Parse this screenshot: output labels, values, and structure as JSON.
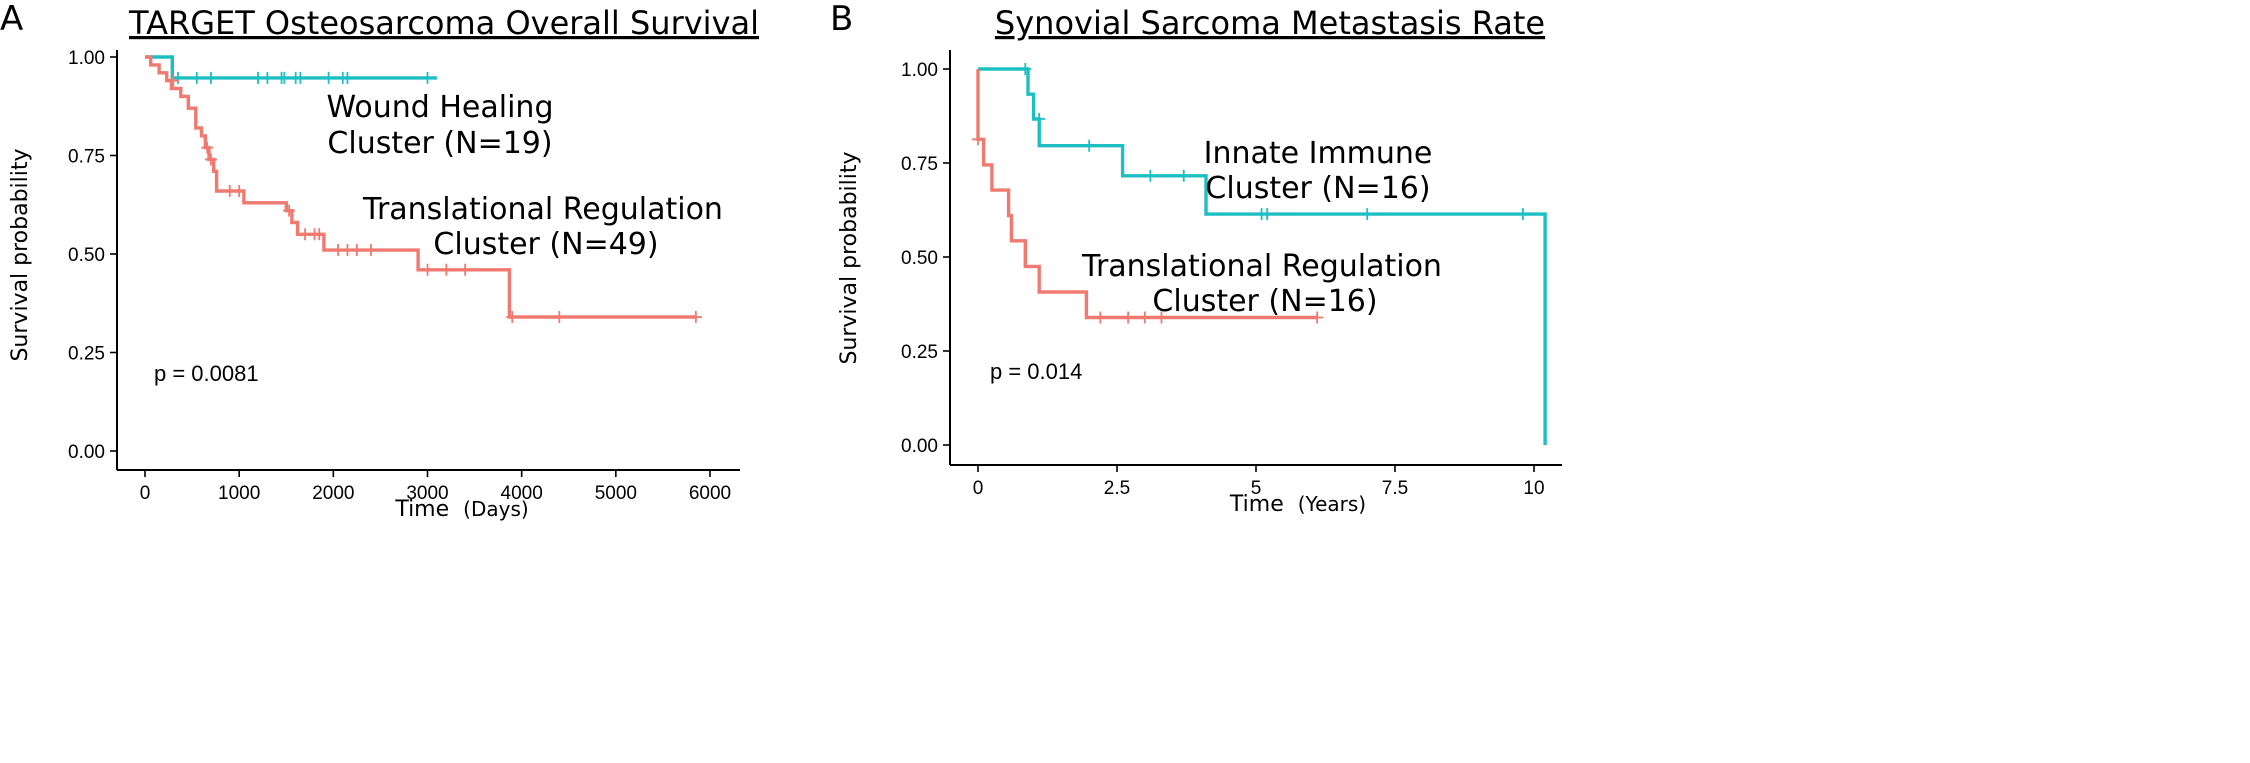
{
  "colors": {
    "series_a": "#f07a70",
    "series_b": "#1ebfc2"
  },
  "chart_data": [
    {
      "type": "line",
      "panel_label": "A",
      "title": "TARGET Osteosarcoma Overall Survival",
      "xlabel": "Time",
      "xunit": "(Days)",
      "ylabel": "Survival probability",
      "xlim": [
        0,
        6100
      ],
      "ylim": [
        0,
        1.02
      ],
      "xticks": [
        0,
        1000,
        2000,
        3000,
        4000,
        5000,
        6000
      ],
      "xtick_labels": [
        "0",
        "1000",
        "2000",
        "3000",
        "4000",
        "5000",
        "6000"
      ],
      "yticks": [
        0,
        0.25,
        0.5,
        0.75,
        1.0
      ],
      "ytick_labels": [
        "0.00",
        "0.25",
        "0.50",
        "0.75",
        "1.00"
      ],
      "pvalue": "p = 0.0081",
      "series": [
        {
          "name_lines": [
            "Wound Healing",
            "Cluster (N=19)"
          ],
          "color_key": "series_b",
          "step_x": [
            0,
            290,
            290,
            3100
          ],
          "step_y": [
            1.0,
            1.0,
            0.947,
            0.947
          ],
          "censors_x": [
            350,
            550,
            700,
            1200,
            1300,
            1450,
            1480,
            1600,
            1650,
            1950,
            2100,
            2150,
            3000
          ],
          "censors_y": [
            0.947,
            0.947,
            0.947,
            0.947,
            0.947,
            0.947,
            0.947,
            0.947,
            0.947,
            0.947,
            0.947,
            0.947,
            0.947
          ]
        },
        {
          "name_lines": [
            "Translational Regulation",
            "Cluster (N=49)"
          ],
          "color_key": "series_a",
          "step_x": [
            0,
            60,
            60,
            150,
            150,
            230,
            230,
            280,
            280,
            380,
            380,
            460,
            460,
            540,
            540,
            600,
            600,
            640,
            640,
            680,
            680,
            730,
            730,
            760,
            760,
            1050,
            1050,
            1500,
            1500,
            1560,
            1560,
            1620,
            1620,
            1900,
            1900,
            2900,
            2900,
            3870,
            3870,
            5850
          ],
          "step_y": [
            1.0,
            1.0,
            0.98,
            0.98,
            0.96,
            0.96,
            0.94,
            0.94,
            0.92,
            0.92,
            0.9,
            0.9,
            0.87,
            0.87,
            0.82,
            0.82,
            0.8,
            0.8,
            0.77,
            0.77,
            0.74,
            0.74,
            0.71,
            0.71,
            0.66,
            0.66,
            0.63,
            0.63,
            0.61,
            0.61,
            0.58,
            0.58,
            0.55,
            0.55,
            0.51,
            0.51,
            0.46,
            0.46,
            0.34,
            0.34
          ],
          "censors_x": [
            300,
            660,
            700,
            900,
            1000,
            1530,
            1700,
            1800,
            1850,
            2050,
            2150,
            2250,
            2400,
            3000,
            3200,
            3400,
            3900,
            4400,
            5850
          ],
          "censors_y": [
            0.94,
            0.77,
            0.74,
            0.66,
            0.66,
            0.61,
            0.55,
            0.55,
            0.55,
            0.51,
            0.51,
            0.51,
            0.51,
            0.46,
            0.46,
            0.46,
            0.34,
            0.34,
            0.34
          ]
        }
      ]
    },
    {
      "type": "line",
      "panel_label": "B",
      "title": "Synovial Sarcoma Metastasis Rate",
      "xlabel": "Time",
      "xunit": "(Years)",
      "ylabel": "Survival probability",
      "xlim": [
        0,
        10.5
      ],
      "ylim": [
        0,
        1.02
      ],
      "xticks": [
        0,
        2.5,
        5,
        7.5,
        10
      ],
      "xtick_labels": [
        "0",
        "2.5",
        "5",
        "7.5",
        "10"
      ],
      "yticks": [
        0,
        0.25,
        0.5,
        0.75,
        1.0
      ],
      "ytick_labels": [
        "0.00",
        "0.25",
        "0.50",
        "0.75",
        "1.00"
      ],
      "pvalue": "p = 0.014",
      "series": [
        {
          "name_lines": [
            "Innate Immune",
            "Cluster (N=16)"
          ],
          "color_key": "series_b",
          "step_x": [
            0,
            0.9,
            0.9,
            1.0,
            1.0,
            1.1,
            1.1,
            2.6,
            2.6,
            4.1,
            4.1,
            10.2,
            10.2
          ],
          "step_y": [
            1.0,
            1.0,
            0.933,
            0.933,
            0.867,
            0.867,
            0.796,
            0.796,
            0.716,
            0.716,
            0.614,
            0.614,
            0.0
          ],
          "censors_x": [
            0.85,
            1.1,
            2.0,
            3.1,
            3.7,
            5.1,
            5.2,
            7.0,
            9.8
          ],
          "censors_y": [
            1.0,
            0.867,
            0.796,
            0.716,
            0.716,
            0.614,
            0.614,
            0.614,
            0.614
          ]
        },
        {
          "name_lines": [
            "Translational Regulation",
            "Cluster (N=16)"
          ],
          "color_key": "series_a",
          "step_x": [
            0,
            0,
            0,
            0.1,
            0.1,
            0.25,
            0.25,
            0.55,
            0.55,
            0.6,
            0.6,
            0.85,
            0.85,
            1.1,
            1.1,
            1.95,
            1.95,
            6.1
          ],
          "step_y": [
            0.813,
            1.0,
            0.813,
            0.813,
            0.745,
            0.745,
            0.678,
            0.678,
            0.61,
            0.61,
            0.543,
            0.543,
            0.475,
            0.475,
            0.407,
            0.407,
            0.339,
            0.339
          ],
          "censors_x": [
            0.0,
            2.2,
            2.7,
            3.0,
            3.3,
            6.1
          ],
          "censors_y": [
            0.813,
            0.339,
            0.339,
            0.339,
            0.339,
            0.339
          ]
        }
      ]
    }
  ]
}
